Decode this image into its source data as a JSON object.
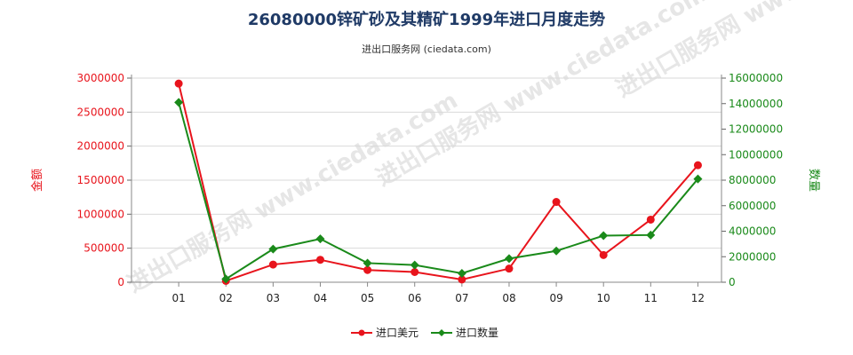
{
  "title": "26080000锌矿砂及其精矿1999年进口月度走势",
  "subtitle": "进出口服务网 (ciedata.com)",
  "watermark": "进出口服务网 www.ciedata.com",
  "colors": {
    "left_axis": "#e8141c",
    "right_axis": "#1a8a1a",
    "series_value": "#e8141c",
    "series_quantity": "#1a8a1a",
    "title": "#1f3a66",
    "grid": "#d9d9d9"
  },
  "chart_data": {
    "type": "line",
    "categories": [
      "01",
      "02",
      "03",
      "04",
      "05",
      "06",
      "07",
      "08",
      "09",
      "10",
      "11",
      "12"
    ],
    "y_left": {
      "label": "金额",
      "ylim": [
        0,
        3000000
      ],
      "ticks": [
        "0",
        "500000",
        "1000000",
        "1500000",
        "2000000",
        "2500000",
        "3000000"
      ]
    },
    "y_right": {
      "label": "数量",
      "ylim": [
        0,
        16000000
      ],
      "ticks": [
        "0",
        "2000000",
        "4000000",
        "6000000",
        "8000000",
        "10000000",
        "12000000",
        "14000000",
        "16000000"
      ]
    },
    "grid": "horizontal",
    "legend_position": "bottom-center",
    "series": [
      {
        "name": "进口美元",
        "axis": "left",
        "values": [
          2920000,
          20000,
          260000,
          330000,
          180000,
          150000,
          40000,
          200000,
          1180000,
          400000,
          920000,
          1720000
        ]
      },
      {
        "name": "进口数量",
        "axis": "right",
        "values": [
          14100000,
          250000,
          2600000,
          3400000,
          1500000,
          1350000,
          700000,
          1850000,
          2450000,
          3650000,
          3700000,
          8100000
        ]
      }
    ]
  }
}
